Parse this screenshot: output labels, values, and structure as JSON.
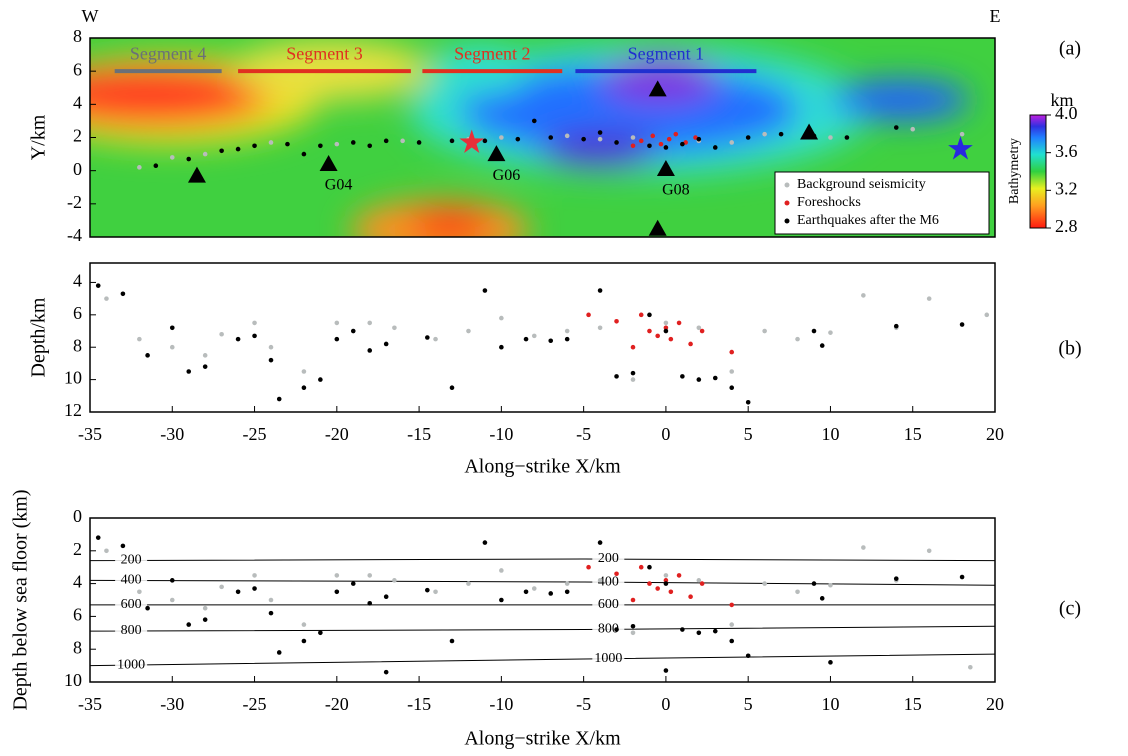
{
  "chart_data": [
    {
      "type": "scatter",
      "panel_label": "(a)",
      "ylabel": "Y/km",
      "west": "W",
      "east": "E",
      "xlim": [
        -35,
        20
      ],
      "ylim": [
        -4,
        8
      ],
      "yticks": [
        -4,
        -2,
        0,
        2,
        4,
        6,
        8
      ],
      "legend": "lower right",
      "series": [
        {
          "name": "Background seismicity",
          "color": "#b8bcbc",
          "x": [
            -32,
            -30,
            -28,
            -24,
            -20,
            -16,
            -12,
            -6,
            -2,
            2,
            6,
            10,
            15,
            18,
            -10,
            -4,
            4
          ],
          "y": [
            0.2,
            0.8,
            1.0,
            1.7,
            1.6,
            1.8,
            1.9,
            2.1,
            2.0,
            1.8,
            2.2,
            2.0,
            2.5,
            2.2,
            2.0,
            1.9,
            1.7
          ]
        },
        {
          "name": "Foreshocks",
          "color": "#e02020",
          "x": [
            -1.5,
            -0.8,
            -0.3,
            0.2,
            0.6,
            1.2,
            -2,
            1.8
          ],
          "y": [
            1.8,
            2.1,
            1.6,
            1.9,
            2.2,
            1.7,
            1.5,
            2.0
          ]
        },
        {
          "name": "Earthquakes after the M6",
          "color": "#000000",
          "x": [
            -31,
            -29,
            -27,
            -25,
            -23,
            -21,
            -19,
            -17,
            -15,
            -13,
            -11,
            -9,
            -7,
            -5,
            -3,
            -1,
            1,
            3,
            5,
            7,
            9,
            11,
            14,
            -26,
            -22,
            -18,
            -8,
            -4,
            0,
            2
          ],
          "y": [
            0.3,
            0.7,
            1.2,
            1.5,
            1.6,
            1.5,
            1.7,
            1.8,
            1.7,
            1.8,
            1.8,
            1.9,
            2.0,
            1.9,
            1.7,
            1.5,
            1.6,
            1.4,
            2.0,
            2.2,
            2.1,
            2.0,
            2.6,
            1.3,
            1.0,
            1.5,
            3.0,
            2.3,
            1.4,
            1.9
          ]
        }
      ],
      "segments": [
        {
          "label": "Segment 4",
          "color": "#6a7078",
          "x": [
            -33.5,
            -27
          ],
          "y": 6
        },
        {
          "label": "Segment 3",
          "color": "#e03020",
          "x": [
            -26,
            -15.5
          ],
          "y": 6
        },
        {
          "label": "Segment 2",
          "color": "#e03020",
          "x": [
            -14.8,
            -6.3
          ],
          "y": 6
        },
        {
          "label": "Segment 1",
          "color": "#2030d0",
          "x": [
            -5.5,
            5.5
          ],
          "y": 6
        }
      ],
      "stations": [
        {
          "label": null,
          "x": -28.5,
          "y": -0.3
        },
        {
          "label": "G04",
          "x": -20.5,
          "y": 0.4
        },
        {
          "label": "G06",
          "x": -10.3,
          "y": 1.0
        },
        {
          "label": "G08",
          "x": 0,
          "y": 0.1
        },
        {
          "label": null,
          "x": -0.5,
          "y": 4.9
        },
        {
          "label": null,
          "x": 8.7,
          "y": 2.3
        },
        {
          "label": null,
          "x": -0.5,
          "y": -3.5
        }
      ],
      "epicenters": [
        {
          "color": "#e8303a",
          "x": -11.8,
          "y": 1.7
        },
        {
          "color": "#2828e0",
          "x": 17.9,
          "y": 1.3
        }
      ],
      "colorbar": {
        "title": "Bathymetry",
        "unit": "km",
        "lim": [
          2.8,
          4.0
        ],
        "ticks": [
          {
            "value": 4,
            "label": "4.0"
          },
          3.6,
          3.2,
          2.8
        ]
      }
    },
    {
      "type": "scatter",
      "panel_label": "(b)",
      "ylabel": "Depth/km",
      "xlabel": "Along−strike X/km",
      "xlim": [
        -35,
        20
      ],
      "ylim": [
        12,
        2.8
      ],
      "xticks": [
        -35,
        -30,
        -25,
        -20,
        -15,
        -10,
        -5,
        0,
        5,
        10,
        15,
        20
      ],
      "yticks": [
        4,
        6,
        8,
        10,
        12
      ],
      "series": [
        {
          "color": "#b8bcbc",
          "x": [
            -34,
            -32,
            -30,
            -28,
            -27,
            -25,
            -24,
            -22,
            -20,
            -18,
            -16.5,
            -14,
            -12,
            -10,
            -8,
            -6,
            -4,
            -2,
            0,
            2,
            4,
            6,
            8,
            10,
            12,
            14,
            16,
            19.5
          ],
          "y": [
            5.0,
            7.5,
            8.0,
            8.5,
            7.2,
            6.5,
            8.0,
            9.5,
            6.5,
            6.5,
            6.8,
            7.5,
            7.0,
            6.2,
            7.3,
            7.0,
            6.8,
            10.0,
            6.5,
            6.8,
            9.5,
            7.0,
            7.5,
            7.1,
            4.8,
            6.8,
            5.0,
            6.0
          ]
        },
        {
          "color": "#e02020",
          "x": [
            -3,
            -1.5,
            -1,
            -0.5,
            0,
            0.3,
            0.8,
            1.5,
            -2,
            2.2,
            -4.7,
            4
          ],
          "y": [
            6.4,
            6.0,
            7.0,
            7.3,
            6.8,
            7.5,
            6.5,
            7.8,
            8.0,
            7.0,
            6.0,
            8.3
          ]
        },
        {
          "color": "#000000",
          "x": [
            -34.5,
            -33,
            -31.5,
            -30,
            -29,
            -28,
            -26,
            -25,
            -24,
            -23.5,
            -22,
            -21,
            -20,
            -19,
            -18,
            -17,
            -14.5,
            -13,
            -11,
            -10,
            -8.5,
            -7,
            -6,
            -4,
            -3,
            -2,
            -1,
            0,
            1,
            2,
            3,
            4,
            5,
            9,
            9.5,
            14,
            18
          ],
          "y": [
            4.2,
            4.7,
            8.5,
            6.8,
            9.5,
            9.2,
            7.5,
            7.3,
            8.8,
            11.2,
            10.5,
            10.0,
            7.5,
            7.0,
            8.2,
            7.8,
            7.4,
            10.5,
            4.5,
            8.0,
            7.5,
            7.6,
            7.5,
            4.5,
            9.8,
            9.6,
            6.0,
            7.0,
            9.8,
            10.0,
            9.9,
            10.5,
            11.4,
            7.0,
            7.9,
            6.7,
            6.6
          ]
        }
      ]
    },
    {
      "type": "scatter",
      "panel_label": "(c)",
      "ylabel": "Depth below sea floor (km)",
      "xlabel": "Along−strike X/km",
      "xlim": [
        -35,
        20
      ],
      "ylim": [
        10,
        0
      ],
      "xticks": [
        -35,
        -30,
        -25,
        -20,
        -15,
        -10,
        -5,
        0,
        5,
        10,
        15,
        20
      ],
      "yticks": [
        0,
        2,
        4,
        6,
        8,
        10
      ],
      "series": [
        {
          "color": "#b8bcbc",
          "x": [
            -34,
            -32,
            -30,
            -28,
            -27,
            -25,
            -24,
            -22,
            -20,
            -18,
            -16.5,
            -14,
            -12,
            -10,
            -8,
            -6,
            -4,
            -2,
            0,
            2,
            4,
            6,
            8,
            10,
            12,
            14,
            16,
            18.5
          ],
          "y": [
            2.0,
            4.5,
            5.0,
            5.5,
            4.2,
            3.5,
            5.0,
            6.5,
            3.5,
            3.5,
            3.8,
            4.5,
            4.0,
            3.2,
            4.3,
            4.0,
            3.8,
            7.0,
            3.5,
            3.8,
            6.5,
            4.0,
            4.5,
            4.1,
            1.8,
            3.8,
            2.0,
            9.1
          ]
        },
        {
          "color": "#e02020",
          "x": [
            -3,
            -1.5,
            -1,
            -0.5,
            0,
            0.3,
            0.8,
            1.5,
            -2,
            2.2,
            -4.7,
            4
          ],
          "y": [
            3.4,
            3.0,
            4.0,
            4.3,
            3.8,
            4.5,
            3.5,
            4.8,
            5.0,
            4.0,
            3.0,
            5.3
          ]
        },
        {
          "color": "#000000",
          "x": [
            -34.5,
            -33,
            -31.5,
            -30,
            -29,
            -28,
            -26,
            -25,
            -24,
            -23.5,
            -22,
            -21,
            -20,
            -19,
            -18,
            -17,
            -14.5,
            -13,
            -11,
            -10,
            -8.5,
            -7,
            -6,
            -4,
            -3,
            -2,
            -1,
            0,
            1,
            2,
            3,
            4,
            5,
            9,
            9.5,
            14,
            18,
            10,
            -17,
            0
          ],
          "y": [
            1.2,
            1.7,
            5.5,
            3.8,
            6.5,
            6.2,
            4.5,
            4.3,
            5.8,
            8.2,
            7.5,
            7.0,
            4.5,
            4.0,
            5.2,
            4.8,
            4.4,
            7.5,
            1.5,
            5.0,
            4.5,
            4.6,
            4.5,
            1.5,
            6.8,
            6.6,
            3.0,
            4.0,
            6.8,
            7.0,
            6.9,
            7.5,
            8.4,
            4.0,
            4.9,
            3.7,
            3.6,
            8.8,
            9.4,
            9.3
          ]
        }
      ],
      "contours": [
        {
          "level": 200,
          "x": [
            -35,
            -5,
            20
          ],
          "y": [
            2.6,
            2.5,
            2.6
          ]
        },
        {
          "level": 400,
          "x": [
            -35,
            -5,
            20
          ],
          "y": [
            3.8,
            3.9,
            4.1
          ]
        },
        {
          "level": 600,
          "x": [
            -35,
            -5,
            20
          ],
          "y": [
            5.3,
            5.3,
            5.3
          ]
        },
        {
          "level": 800,
          "x": [
            -35,
            -5,
            20
          ],
          "y": [
            6.9,
            6.8,
            6.6
          ]
        },
        {
          "level": 1000,
          "x": [
            -35,
            -5,
            20
          ],
          "y": [
            9.0,
            8.6,
            8.3
          ]
        }
      ]
    }
  ]
}
